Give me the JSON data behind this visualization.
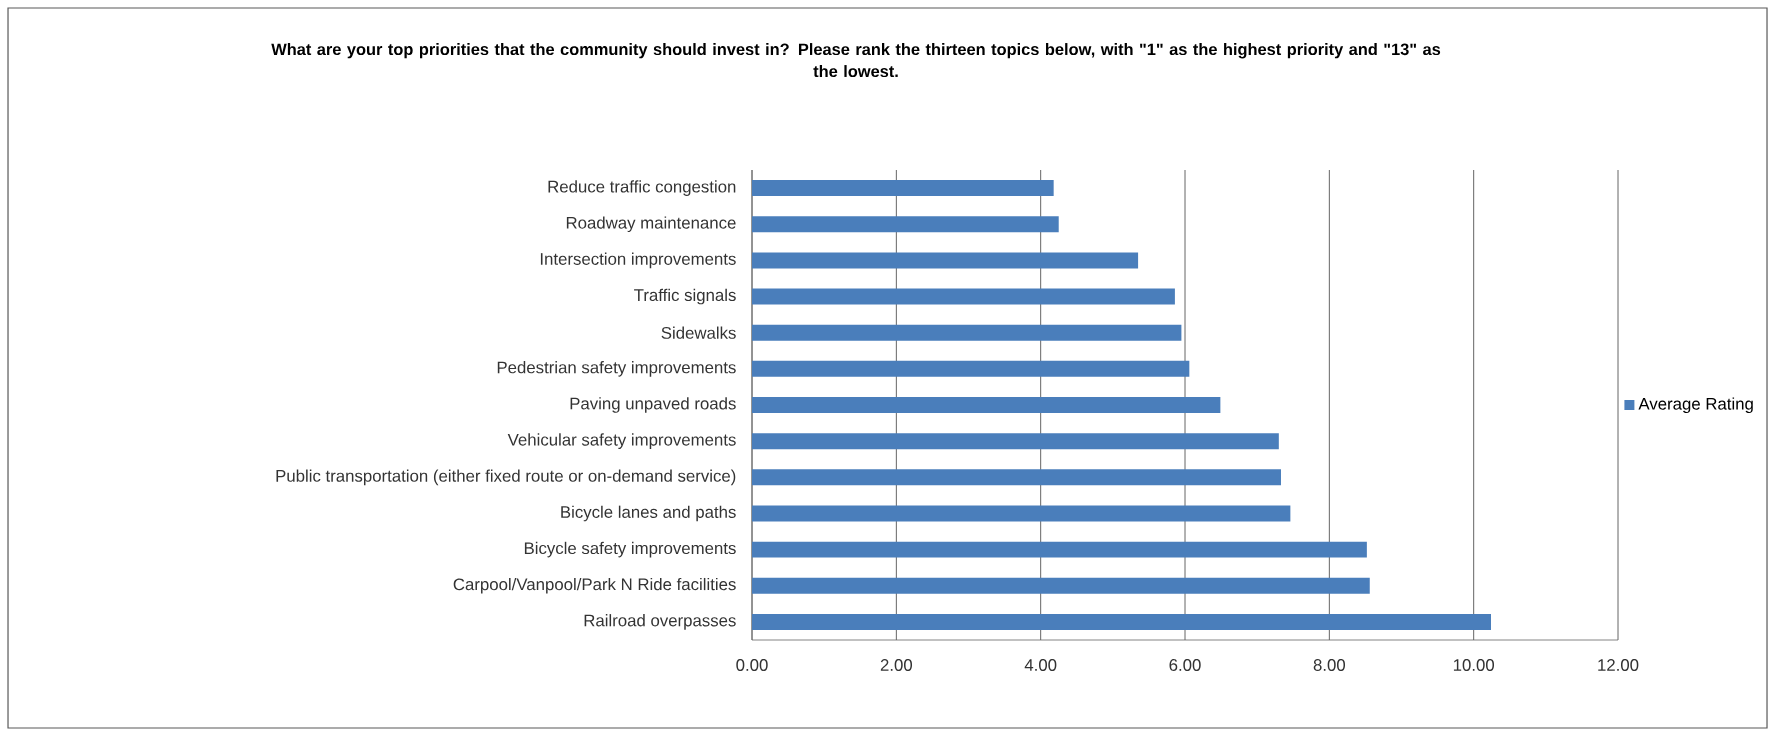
{
  "chart_data": {
    "type": "bar",
    "orientation": "horizontal",
    "title": "What are your top priorities that the community should invest in?  Please rank the thirteen topics below, with \"1\" as the highest priority and \"13\" as the lowest.",
    "categories": [
      "Reduce traffic congestion",
      "Roadway maintenance",
      "Intersection improvements",
      "Traffic signals",
      "Sidewalks",
      "Pedestrian safety improvements",
      "Paving unpaved roads",
      "Vehicular safety improvements",
      "Public transportation (either fixed route or on-demand service)",
      "Bicycle lanes and paths",
      "Bicycle safety improvements",
      "Carpool/Vanpool/Park N Ride facilities",
      "Railroad overpasses"
    ],
    "series": [
      {
        "name": "Average Rating",
        "color": "#4a7ebb",
        "values": [
          4.18,
          4.25,
          5.35,
          5.86,
          5.95,
          6.06,
          6.49,
          7.3,
          7.33,
          7.46,
          8.52,
          8.56,
          10.24
        ]
      }
    ],
    "xlim": [
      0,
      12
    ],
    "xticks": [
      {
        "value": 0,
        "label": "0.00"
      },
      {
        "value": 2,
        "label": "2.00"
      },
      {
        "value": 4,
        "label": "4.00"
      },
      {
        "value": 6,
        "label": "6.00"
      },
      {
        "value": 8,
        "label": "8.00"
      },
      {
        "value": 10,
        "label": "10.00"
      },
      {
        "value": 12,
        "label": "12.00"
      }
    ],
    "grid": "x",
    "legend": "right"
  }
}
